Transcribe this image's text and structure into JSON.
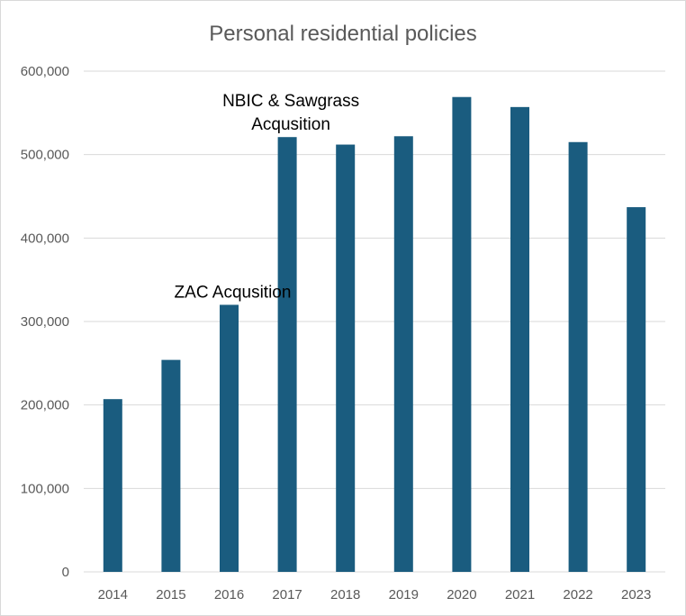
{
  "chart_data": {
    "type": "bar",
    "title": "Personal residential policies",
    "xlabel": "",
    "ylabel": "",
    "categories": [
      "2014",
      "2015",
      "2016",
      "2017",
      "2018",
      "2019",
      "2020",
      "2021",
      "2022",
      "2023"
    ],
    "series": [
      {
        "name": "Personal residential policies",
        "values": [
          207000,
          254000,
          320000,
          521000,
          512000,
          522000,
          569000,
          557000,
          515000,
          437000
        ],
        "color": "#1a5c7f"
      }
    ],
    "ylim": [
      0,
      600000
    ],
    "yticks": [
      0,
      100000,
      200000,
      300000,
      400000,
      500000,
      600000
    ],
    "ytick_labels": [
      "0",
      "100,000",
      "200,000",
      "300,000",
      "400,000",
      "500,000",
      "600,000"
    ],
    "grid": true,
    "legend": "none",
    "annotations": [
      {
        "category": "2016",
        "lines": [
          "ZAC Acqusition"
        ]
      },
      {
        "category": "2017",
        "lines": [
          "NBIC & Sawgrass",
          "Acqusition"
        ]
      }
    ]
  }
}
